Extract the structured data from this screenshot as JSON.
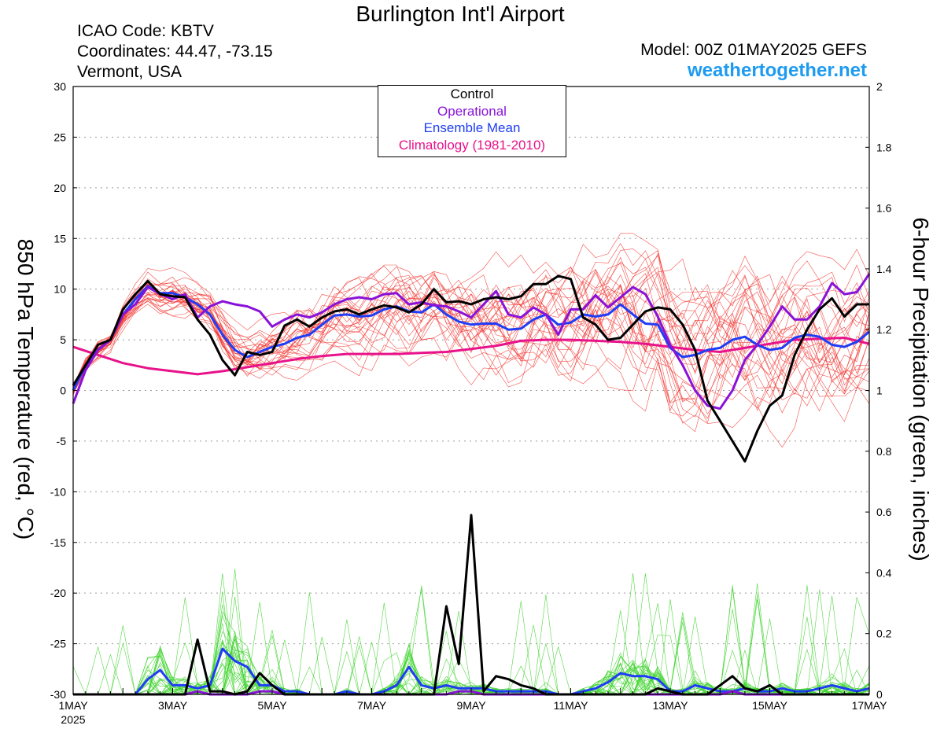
{
  "header": {
    "title": "Burlington Int'l Airport",
    "icao": "ICAO Code: KBTV",
    "coordinates": "Coordinates: 44.47, -73.15",
    "location": "Vermont, USA",
    "model": "Model: 00Z 01MAY2025 GEFS",
    "site": "weathertogether.net"
  },
  "chart_data": {
    "type": "line",
    "title": "Burlington Int'l Airport",
    "x_unit": "days since 01MAY2025 00Z",
    "xlim": [
      0,
      16
    ],
    "x_tick_labels": [
      "1MAY",
      "3MAY",
      "5MAY",
      "7MAY",
      "9MAY",
      "11MAY",
      "13MAY",
      "15MAY",
      "17MAY"
    ],
    "x_tick_year": "2025",
    "ylabel_left": "850 hPa Temperature (red, °C)",
    "ylabel_right": "6-hour Precipitation (green, inches)",
    "ylim_left": [
      -30,
      30
    ],
    "yticks_left": [
      -30,
      -25,
      -20,
      -15,
      -10,
      -5,
      0,
      5,
      10,
      15,
      20,
      25,
      30
    ],
    "ylim_right": [
      0,
      2
    ],
    "yticks_right": [
      0,
      0.2,
      0.4,
      0.6,
      0.8,
      1,
      1.2,
      1.4,
      1.6,
      1.8,
      2
    ],
    "grid": true,
    "legend_position": "top-center",
    "legend": [
      {
        "label": "Control",
        "color": "#000000"
      },
      {
        "label": "Operational",
        "color": "#8a12d8"
      },
      {
        "label": "Ensemble Mean",
        "color": "#1f3df5"
      },
      {
        "label": "Climatology (1981-2010)",
        "color": "#e8128a"
      }
    ],
    "member_colors": {
      "temperature": "#f2342f",
      "precipitation": "#3fd42e"
    },
    "series": [
      {
        "name": "Control",
        "axis": "left",
        "color": "#000000",
        "x": [
          0,
          0.25,
          0.5,
          0.75,
          1,
          1.25,
          1.5,
          1.75,
          2,
          2.25,
          2.5,
          2.75,
          3,
          3.25,
          3.5,
          3.75,
          4,
          4.25,
          4.5,
          4.75,
          5,
          5.25,
          5.5,
          5.75,
          6,
          6.25,
          6.5,
          6.75,
          7,
          7.25,
          7.5,
          7.75,
          8,
          8.25,
          8.5,
          8.75,
          9,
          9.25,
          9.5,
          9.75,
          10,
          10.25,
          10.5,
          10.75,
          11,
          11.25,
          11.5,
          11.75,
          12,
          12.25,
          12.5,
          12.75,
          13,
          13.25,
          13.5,
          13.75,
          14,
          14.25,
          14.5,
          14.75,
          15,
          15.25,
          15.5,
          15.75,
          16
        ],
        "values": [
          0.5,
          2.5,
          4.5,
          5,
          8,
          9.5,
          10.8,
          9.5,
          9.3,
          9.2,
          7,
          5.5,
          3,
          1.5,
          3.8,
          3.5,
          3.8,
          6.4,
          7,
          6.3,
          7.2,
          7.8,
          8,
          7.5,
          8,
          8.4,
          8.2,
          7.7,
          8.5,
          10,
          8.7,
          8.8,
          8.5,
          9,
          9.2,
          9,
          9.3,
          10.5,
          10.5,
          11.3,
          11,
          7.2,
          6.5,
          5,
          5.2,
          6.5,
          7.8,
          8.2,
          8,
          6.5,
          4,
          -1,
          -3,
          -5,
          -7,
          -4,
          -1.5,
          -0.5,
          3.5,
          6,
          8,
          9.1,
          7.3,
          8.5,
          8.5
        ]
      },
      {
        "name": "Operational",
        "axis": "left",
        "color": "#8a12d8",
        "x": [
          0,
          0.25,
          0.5,
          0.75,
          1,
          1.25,
          1.5,
          1.75,
          2,
          2.25,
          2.5,
          2.75,
          3,
          3.25,
          3.5,
          3.75,
          4,
          4.25,
          4.5,
          4.75,
          5,
          5.25,
          5.5,
          5.75,
          6,
          6.25,
          6.5,
          6.75,
          7,
          7.25,
          7.5,
          7.75,
          8,
          8.25,
          8.5,
          8.75,
          9,
          9.25,
          9.5,
          9.75,
          10,
          10.25,
          10.5,
          10.75,
          11,
          11.25,
          11.5,
          11.75,
          12,
          12.25,
          12.5,
          12.75,
          13,
          13.25,
          13.5,
          13.75,
          14,
          14.25,
          14.5,
          14.75,
          15,
          15.25,
          15.5,
          15.75,
          16
        ],
        "values": [
          -1.3,
          2,
          4,
          5,
          7.5,
          8.5,
          10.2,
          9.5,
          9,
          9.5,
          7.2,
          8.3,
          8.8,
          8.5,
          8.3,
          7.8,
          6.3,
          7,
          7.5,
          7.2,
          7.7,
          8.5,
          9,
          9.2,
          9,
          9.5,
          9.6,
          8.5,
          8.7,
          8.4,
          8.3,
          7.8,
          7.2,
          8.5,
          9.8,
          7.5,
          7.2,
          8.2,
          7.5,
          5.5,
          8,
          8,
          9.4,
          8.2,
          9.2,
          10.2,
          9.5,
          7.3,
          4.5,
          2.5,
          0,
          -1.5,
          -1.8,
          0,
          3,
          4.5,
          6.3,
          8.3,
          7,
          7,
          8.3,
          10.6,
          9.5,
          9.7,
          11.5
        ]
      },
      {
        "name": "Ensemble Mean",
        "axis": "left",
        "color": "#1f3df5",
        "x": [
          0,
          0.25,
          0.5,
          0.75,
          1,
          1.25,
          1.5,
          1.75,
          2,
          2.25,
          2.5,
          2.75,
          3,
          3.25,
          3.5,
          3.75,
          4,
          4.25,
          4.5,
          4.75,
          5,
          5.25,
          5.5,
          5.75,
          6,
          6.25,
          6.5,
          6.75,
          7,
          7.25,
          7.5,
          7.75,
          8,
          8.25,
          8.5,
          8.75,
          9,
          9.25,
          9.5,
          9.75,
          10,
          10.25,
          10.5,
          10.75,
          11,
          11.25,
          11.5,
          11.75,
          12,
          12.25,
          12.5,
          12.75,
          13,
          13.25,
          13.5,
          13.75,
          14,
          14.25,
          14.5,
          14.75,
          15,
          15.25,
          15.5,
          15.75,
          16
        ],
        "values": [
          0,
          2.5,
          4,
          5,
          7.5,
          9,
          10.3,
          9.6,
          9.6,
          9.2,
          8.5,
          7.5,
          5.5,
          4,
          3.3,
          3.8,
          4.3,
          4.6,
          5.2,
          5.5,
          6.5,
          7.4,
          7.5,
          7.3,
          7.4,
          8,
          8.3,
          7.8,
          7.7,
          8.5,
          7.5,
          6.8,
          6.5,
          6.6,
          6.6,
          6,
          6.1,
          7,
          7.5,
          6.5,
          6.7,
          7.5,
          7.3,
          7.5,
          8.5,
          7.5,
          6.6,
          6.5,
          4.2,
          3.3,
          3.5,
          4,
          4.2,
          5,
          5.3,
          4.5,
          4,
          4.2,
          5.2,
          5.5,
          5.3,
          4.5,
          4.3,
          4.8,
          5.8
        ]
      },
      {
        "name": "Climatology (1981-2010)",
        "axis": "left",
        "color": "#e8128a",
        "x": [
          0,
          0.5,
          1,
          1.5,
          2,
          2.5,
          3,
          3.5,
          4,
          4.5,
          5,
          5.5,
          6,
          6.5,
          7,
          7.5,
          8,
          8.5,
          9,
          9.5,
          10,
          10.5,
          11,
          11.5,
          12,
          12.5,
          13,
          13.5,
          14,
          14.5,
          15,
          15.5,
          16
        ],
        "values": [
          4.3,
          3.5,
          2.7,
          2.2,
          1.9,
          1.6,
          1.9,
          2.3,
          2.7,
          3.1,
          3.4,
          3.6,
          3.6,
          3.6,
          3.7,
          3.8,
          4.1,
          4.4,
          4.9,
          5.0,
          5.0,
          4.9,
          4.8,
          4.6,
          4.3,
          4.0,
          3.8,
          4.2,
          4.6,
          5.0,
          5.1,
          5.2,
          4.6
        ]
      },
      {
        "name": "Control",
        "axis": "right",
        "color": "#000000",
        "x": [
          0,
          0.25,
          0.5,
          0.75,
          1,
          1.25,
          1.5,
          1.75,
          2,
          2.25,
          2.5,
          2.75,
          3,
          3.25,
          3.5,
          3.75,
          4,
          4.25,
          4.5,
          4.75,
          5,
          5.25,
          5.5,
          5.75,
          6,
          6.25,
          6.5,
          6.75,
          7,
          7.25,
          7.5,
          7.75,
          8,
          8.25,
          8.5,
          8.75,
          9,
          9.25,
          9.5,
          9.75,
          10,
          10.25,
          10.5,
          10.75,
          11,
          11.25,
          11.5,
          11.75,
          12,
          12.25,
          12.5,
          12.75,
          13,
          13.25,
          13.5,
          13.75,
          14,
          14.25,
          14.5,
          14.75,
          15,
          15.25,
          15.5,
          15.75,
          16
        ],
        "values": [
          0,
          0,
          0,
          0,
          0,
          0,
          0,
          0,
          0,
          0,
          0.18,
          0.01,
          0.01,
          0,
          0.01,
          0.07,
          0.03,
          0,
          0,
          0,
          0,
          0,
          0,
          0,
          0,
          0,
          0,
          0,
          0,
          0,
          0.29,
          0.1,
          0.59,
          0.01,
          0.06,
          0.05,
          0.03,
          0.02,
          0,
          0,
          0,
          0,
          0,
          0,
          0,
          0,
          0,
          0.02,
          0.01,
          0,
          0,
          0,
          0.03,
          0.06,
          0.02,
          0.01,
          0.03,
          0,
          0,
          0,
          0,
          0,
          0,
          0,
          0
        ]
      },
      {
        "name": "Operational",
        "axis": "right",
        "color": "#8a12d8",
        "x": [
          0,
          0.25,
          0.5,
          0.75,
          1,
          1.25,
          1.5,
          1.75,
          2,
          2.25,
          2.5,
          2.75,
          3,
          3.25,
          3.5,
          3.75,
          4,
          4.25,
          4.5,
          4.75,
          5,
          5.25,
          5.5,
          5.75,
          6,
          6.25,
          6.5,
          6.75,
          7,
          7.25,
          7.5,
          7.75,
          8,
          8.25,
          8.5,
          8.75,
          9,
          9.25,
          9.5,
          9.75,
          10,
          10.25,
          10.5,
          10.75,
          11,
          11.25,
          11.5,
          11.75,
          12,
          12.25,
          12.5,
          12.75,
          13,
          13.25,
          13.5,
          13.75,
          14,
          14.25,
          14.5,
          14.75,
          15,
          15.25,
          15.5,
          15.75,
          16
        ],
        "values": [
          0,
          0,
          0,
          0,
          0,
          0,
          0,
          0,
          0,
          0,
          0.01,
          0,
          0,
          0,
          0,
          0.01,
          0.01,
          0,
          0,
          0,
          0,
          0,
          0,
          0,
          0,
          0,
          0,
          0,
          0,
          0,
          0,
          0.01,
          0.01,
          0,
          0,
          0,
          0,
          0,
          0,
          0,
          0,
          0,
          0,
          0,
          0,
          0,
          0,
          0,
          0,
          0,
          0,
          0,
          0,
          0.01,
          0,
          0,
          0,
          0,
          0,
          0,
          0,
          0,
          0,
          0,
          0
        ]
      },
      {
        "name": "Ensemble Mean",
        "axis": "right",
        "color": "#1f3df5",
        "x": [
          0,
          0.25,
          0.5,
          0.75,
          1,
          1.25,
          1.5,
          1.75,
          2,
          2.25,
          2.5,
          2.75,
          3,
          3.25,
          3.5,
          3.75,
          4,
          4.25,
          4.5,
          4.75,
          5,
          5.25,
          5.5,
          5.75,
          6,
          6.25,
          6.5,
          6.75,
          7,
          7.25,
          7.5,
          7.75,
          8,
          8.25,
          8.5,
          8.75,
          9,
          9.25,
          9.5,
          9.75,
          10,
          10.25,
          10.5,
          10.75,
          11,
          11.25,
          11.5,
          11.75,
          12,
          12.25,
          12.5,
          12.75,
          13,
          13.25,
          13.5,
          13.75,
          14,
          14.25,
          14.5,
          14.75,
          15,
          15.25,
          15.5,
          15.75,
          16
        ],
        "values": [
          0,
          0,
          0,
          0,
          0,
          0,
          0.05,
          0.08,
          0.03,
          0.03,
          0.02,
          0.03,
          0.15,
          0.11,
          0.09,
          0.03,
          0.03,
          0.01,
          0.01,
          0,
          0,
          0,
          0.01,
          0,
          0,
          0.01,
          0.03,
          0.09,
          0.03,
          0.02,
          0.03,
          0.02,
          0.02,
          0.02,
          0.01,
          0.01,
          0.01,
          0.01,
          0.01,
          0,
          0,
          0.01,
          0.02,
          0.04,
          0.07,
          0.06,
          0.06,
          0.05,
          0.01,
          0.01,
          0.03,
          0.02,
          0.01,
          0.01,
          0.02,
          0.01,
          0.01,
          0.02,
          0.01,
          0.01,
          0.02,
          0.03,
          0.02,
          0.01,
          0.02
        ]
      }
    ]
  }
}
